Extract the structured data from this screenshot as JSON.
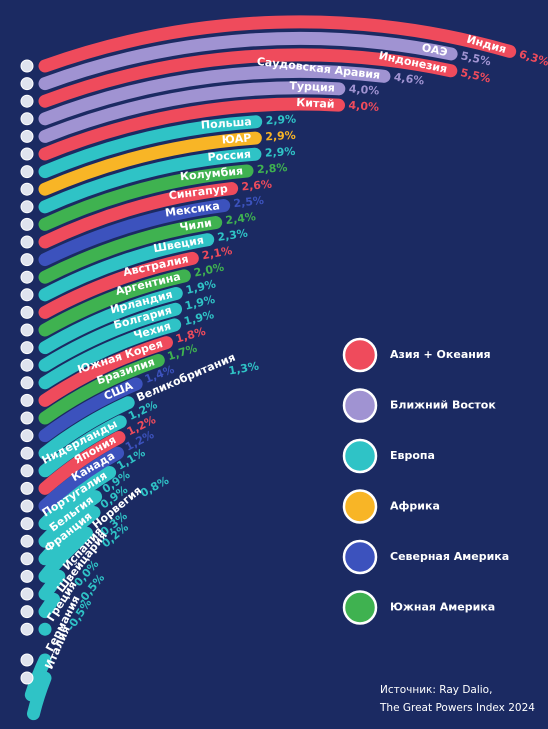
{
  "chart_data": {
    "type": "bar",
    "categories": [
      "Индия",
      "ОАЭ",
      "Индонезия",
      "Саудовская Аравия",
      "Турция",
      "Китай",
      "Польша",
      "ЮАР",
      "Россия",
      "Колумбия",
      "Сингапур",
      "Мексика",
      "Чили",
      "Швеция",
      "Австралия",
      "Аргентина",
      "Ирландия",
      "Болгария",
      "Чехия",
      "Южная Корея",
      "Бразилия",
      "США",
      "Великобритания",
      "Нидерланды",
      "Япония",
      "Канада",
      "Португалия",
      "Бельгия",
      "Франция",
      "Норвегия",
      "Испания",
      "Швейцария",
      "Греция",
      "Германия",
      "Италия"
    ],
    "values": [
      6.3,
      5.5,
      5.5,
      4.6,
      4.0,
      4.0,
      2.9,
      2.9,
      2.9,
      2.8,
      2.6,
      2.5,
      2.4,
      2.3,
      2.1,
      2.0,
      1.9,
      1.9,
      1.9,
      1.8,
      1.7,
      1.4,
      1.3,
      1.2,
      1.2,
      1.2,
      1.1,
      0.9,
      0.9,
      0.8,
      0.3,
      0.2,
      0.0,
      -0.5,
      -0.5
    ],
    "value_labels": [
      "6,3%",
      "5,5%",
      "5,5%",
      "4,6%",
      "4,0%",
      "4,0%",
      "2,9%",
      "2,9%",
      "2,9%",
      "2,8%",
      "2,6%",
      "2,5%",
      "2,4%",
      "2,3%",
      "2,1%",
      "2,0%",
      "1,9%",
      "1,9%",
      "1,9%",
      "1,8%",
      "1,7%",
      "1,4%",
      "1,3%",
      "1,2%",
      "1,2%",
      "1,2%",
      "1,1%",
      "0,9%",
      "0,9%",
      "0,8%",
      "0,3%",
      "0,2%",
      "0,0%",
      "-0,5%",
      "-0,5%"
    ],
    "colors": [
      "#ef4b5c",
      "#a093d2",
      "#ef4b5c",
      "#a093d2",
      "#a093d2",
      "#ef4b5c",
      "#2fc3c6",
      "#f8b526",
      "#2fc3c6",
      "#3fb250",
      "#ef4b5c",
      "#3c52bd",
      "#3fb250",
      "#2fc3c6",
      "#ef4b5c",
      "#3fb250",
      "#2fc3c6",
      "#2fc3c6",
      "#2fc3c6",
      "#ef4b5c",
      "#3fb250",
      "#3c52bd",
      "#2fc3c6",
      "#2fc3c6",
      "#ef4b5c",
      "#3c52bd",
      "#2fc3c6",
      "#2fc3c6",
      "#2fc3c6",
      "#2fc3c6",
      "#2fc3c6",
      "#2fc3c6",
      "#2fc3c6",
      "#2fc3c6",
      "#2fc3c6"
    ],
    "legend": [
      {
        "name": "Азия + Океания",
        "color": "#ef4b5c"
      },
      {
        "name": "Ближний Восток",
        "color": "#a093d2"
      },
      {
        "name": "Европа",
        "color": "#2fc3c6"
      },
      {
        "name": "Африка",
        "color": "#f8b526"
      },
      {
        "name": "Северная Америка",
        "color": "#3c52bd"
      },
      {
        "name": "Южная Америка",
        "color": "#3fb250"
      }
    ],
    "source": [
      "Источник: Ray Dalio,",
      "The Great Powers Index 2024"
    ]
  }
}
